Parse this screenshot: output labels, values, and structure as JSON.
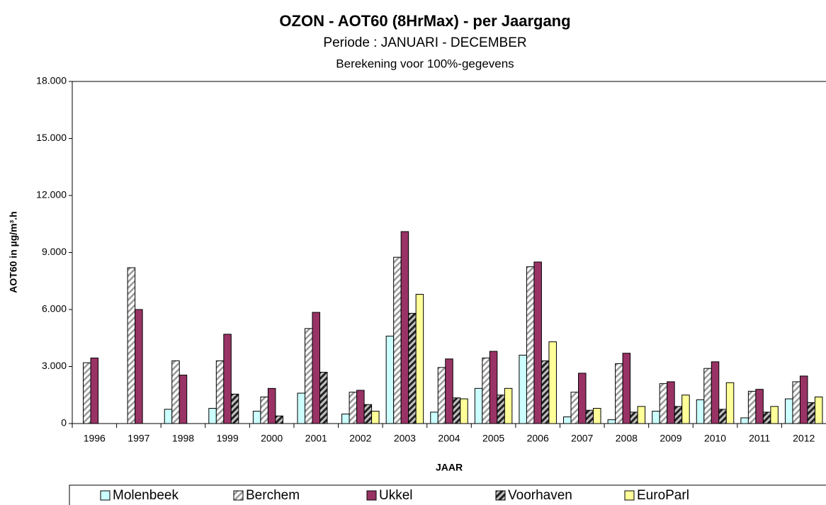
{
  "chart_data": {
    "type": "bar",
    "title": "OZON - AOT60 (8HrMax) - per Jaargang",
    "subtitle": "Periode : JANUARI - DECEMBER",
    "subtitle2": "Berekening voor 100%-gegevens",
    "x_label": "JAAR",
    "y_label": "AOT60 in µg/m³.h",
    "categories": [
      "1996",
      "1997",
      "1998",
      "1999",
      "2000",
      "2001",
      "2002",
      "2003",
      "2004",
      "2005",
      "2006",
      "2007",
      "2008",
      "2009",
      "2010",
      "2011",
      "2012"
    ],
    "series": [
      {
        "name": "Molenbeek",
        "color": "#ccffff",
        "pattern": "none",
        "values": [
          null,
          null,
          750,
          800,
          650,
          1600,
          500,
          4600,
          600,
          1850,
          3600,
          350,
          200,
          650,
          1250,
          300,
          1300
        ]
      },
      {
        "name": "Berchem",
        "color": "#ffffff",
        "pattern": "light-diagonal",
        "values": [
          3200,
          8200,
          3300,
          3300,
          1400,
          5000,
          1650,
          8750,
          2950,
          3450,
          8250,
          1650,
          3150,
          2100,
          2900,
          1700,
          2200
        ]
      },
      {
        "name": "Ukkel",
        "color": "#993366",
        "pattern": "none",
        "values": [
          3450,
          6000,
          2550,
          4700,
          1850,
          5850,
          1750,
          10100,
          3400,
          3800,
          8500,
          2650,
          3700,
          2200,
          3250,
          1800,
          2500
        ]
      },
      {
        "name": "Voorhaven",
        "color": "#c0c0c0",
        "pattern": "dark-diagonal",
        "values": [
          null,
          null,
          null,
          1550,
          400,
          2700,
          1000,
          5800,
          1350,
          1500,
          3300,
          700,
          600,
          900,
          750,
          600,
          1100
        ]
      },
      {
        "name": "EuroParl",
        "color": "#ffff99",
        "pattern": "none",
        "values": [
          null,
          null,
          null,
          null,
          null,
          null,
          650,
          6800,
          1300,
          1850,
          4300,
          800,
          900,
          1500,
          2150,
          900,
          1400
        ]
      }
    ],
    "ylim": [
      0,
      18000
    ],
    "yticks": [
      {
        "value": 0,
        "label": "0"
      },
      {
        "value": 3000,
        "label": "3.000"
      },
      {
        "value": 6000,
        "label": "6.000"
      },
      {
        "value": 9000,
        "label": "9.000"
      },
      {
        "value": 12000,
        "label": "12.000"
      },
      {
        "value": 15000,
        "label": "15.000"
      },
      {
        "value": 18000,
        "label": "18.000"
      }
    ],
    "grid": false,
    "legend": "bottom"
  }
}
